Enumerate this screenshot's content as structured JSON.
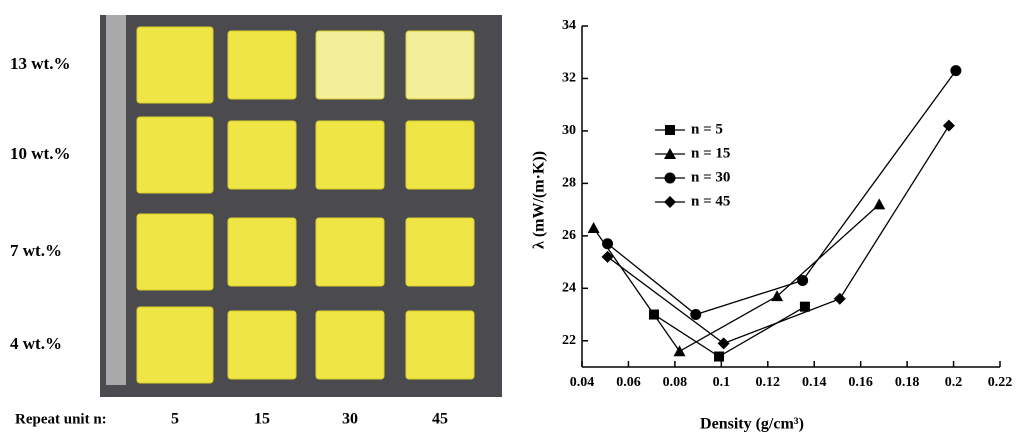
{
  "photo": {
    "row_labels": [
      "13 wt.%",
      "10 wt.%",
      "7 wt.%",
      "4 wt.%"
    ],
    "column_header": "Repeat unit n:",
    "column_labels": [
      "5",
      "15",
      "30",
      "45"
    ]
  },
  "chart_data": {
    "type": "line",
    "x_label": "Density (g/cm³)",
    "y_label": "λ (mW/(m·K))",
    "xlim": [
      0.04,
      0.22
    ],
    "xticks": [
      0.04,
      0.06,
      0.08,
      0.1,
      0.12,
      0.14,
      0.16,
      0.18,
      0.2,
      0.22
    ],
    "ylim": [
      21,
      34
    ],
    "yticks": [
      22,
      24,
      26,
      28,
      30,
      32,
      34
    ],
    "grid": false,
    "legend": "upper-left",
    "series": [
      {
        "name": "n = 5",
        "marker": "square",
        "color": "#000000",
        "x": [
          0.071,
          0.099,
          0.136
        ],
        "values": [
          23.0,
          21.4,
          23.3
        ]
      },
      {
        "name": "n = 15",
        "marker": "triangle",
        "color": "#000000",
        "x": [
          0.045,
          0.082,
          0.124,
          0.168
        ],
        "values": [
          26.3,
          21.6,
          23.7,
          27.2
        ]
      },
      {
        "name": "n = 30",
        "marker": "circle",
        "color": "#000000",
        "x": [
          0.051,
          0.089,
          0.135,
          0.201
        ],
        "values": [
          25.7,
          23.0,
          24.3,
          32.3
        ]
      },
      {
        "name": "n = 45",
        "marker": "diamond",
        "color": "#000000",
        "x": [
          0.051,
          0.101,
          0.151,
          0.198
        ],
        "values": [
          25.2,
          21.9,
          23.6,
          30.2
        ]
      }
    ]
  }
}
